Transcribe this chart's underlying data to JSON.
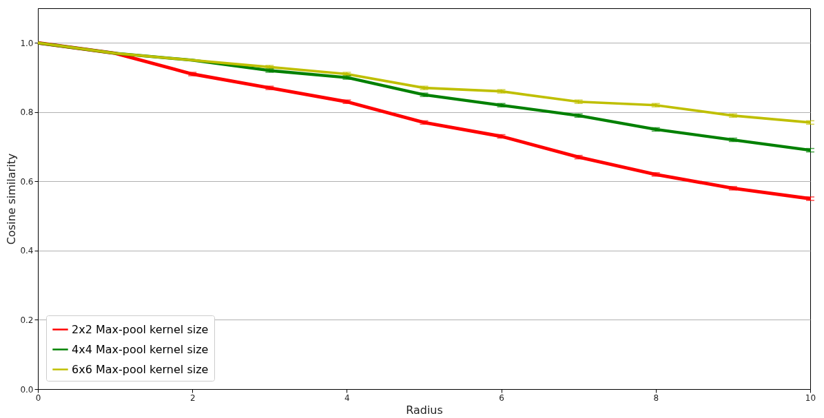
{
  "chart_data": {
    "type": "line",
    "xlabel": "Radius",
    "ylabel": "Cosine similarity",
    "x": [
      0,
      1,
      2,
      3,
      4,
      5,
      6,
      7,
      8,
      9,
      10
    ],
    "xlim": [
      0,
      10
    ],
    "xticks": [
      0,
      2,
      4,
      6,
      8,
      10
    ],
    "ylim": [
      0,
      1.1
    ],
    "yticks": [
      {
        "value": 0,
        "label": "0.0"
      },
      {
        "value": 0.2,
        "label": "0.2"
      },
      {
        "value": 0.4,
        "label": "0.4"
      },
      {
        "value": 0.6,
        "label": "0.6"
      },
      {
        "value": 0.8,
        "label": "0.8"
      },
      {
        "value": 1,
        "label": "1.0"
      }
    ],
    "grid": "y",
    "legend": "bottom left",
    "line_style": "solid",
    "series": [
      {
        "name": "2x2 Max-pool kernel size",
        "color": "#ff0000",
        "values": [
          1.0,
          0.97,
          0.91,
          0.87,
          0.83,
          0.77,
          0.73,
          0.67,
          0.62,
          0.58,
          0.55
        ],
        "errors": [
          null,
          null,
          0.005,
          0.005,
          0.005,
          0.005,
          0.005,
          0.005,
          0.005,
          0.005,
          0.005
        ]
      },
      {
        "name": "4x4 Max-pool kernel size",
        "color": "#008000",
        "values": [
          1.0,
          0.97,
          0.95,
          0.92,
          0.9,
          0.85,
          0.82,
          0.79,
          0.75,
          0.72,
          0.69
        ],
        "errors": [
          null,
          null,
          null,
          0.005,
          0.005,
          0.005,
          0.005,
          0.005,
          0.005,
          0.005,
          0.005
        ]
      },
      {
        "name": "6x6 Max-pool kernel size",
        "color": "#bfbf00",
        "values": [
          1.0,
          0.97,
          0.95,
          0.93,
          0.91,
          0.87,
          0.86,
          0.83,
          0.82,
          0.79,
          0.77
        ],
        "errors": [
          null,
          null,
          null,
          0.005,
          0.005,
          0.005,
          0.005,
          0.005,
          0.005,
          0.005,
          0.005
        ]
      }
    ]
  }
}
